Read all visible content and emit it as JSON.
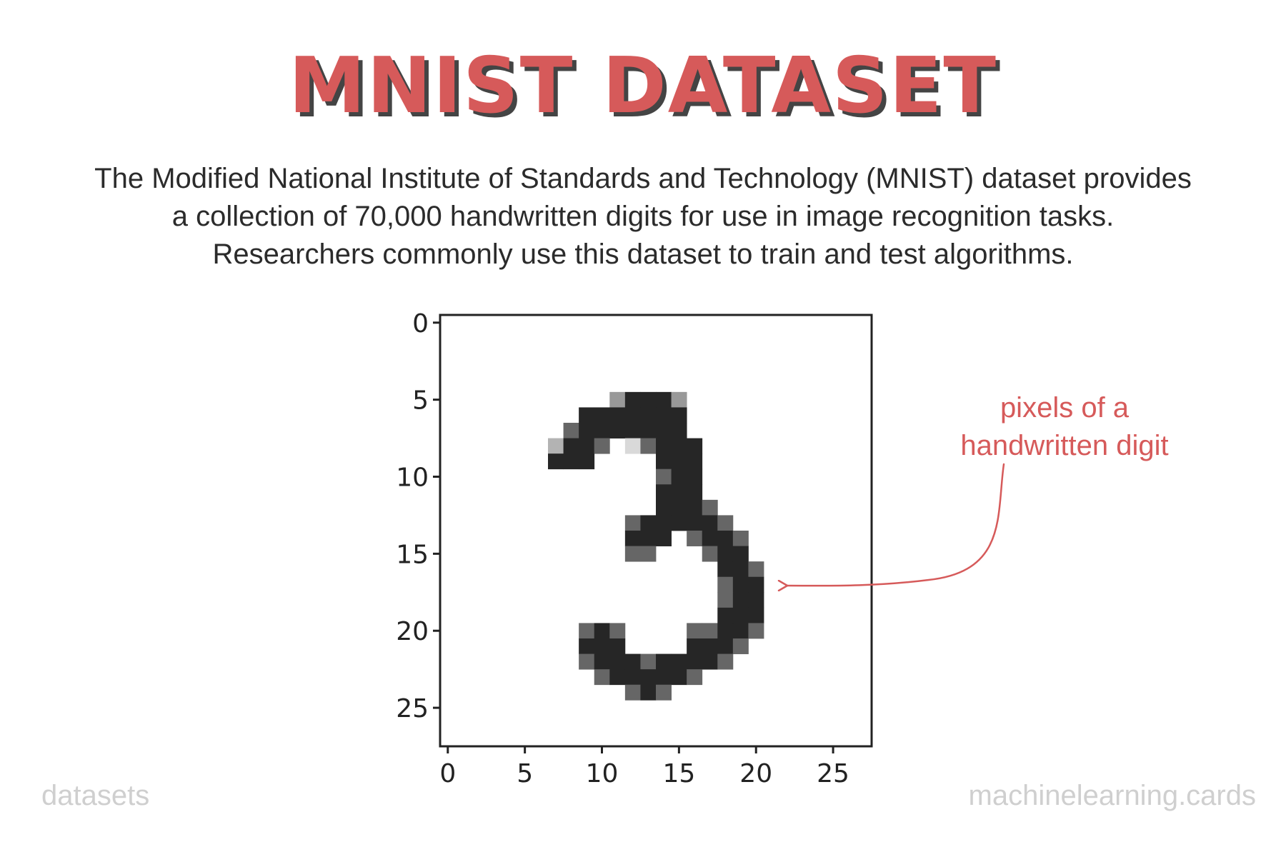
{
  "title": "MNIST DATASET",
  "description": [
    "The Modified National Institute of Standards and Technology (MNIST) dataset provides",
    "a collection of 70,000 handwritten digits for use in image recognition tasks.",
    "Researchers commonly use this dataset to train and test algorithms."
  ],
  "annotation": [
    "pixels of a",
    "handwritten digit"
  ],
  "footer": {
    "left": "datasets",
    "right": "machinelearning.cards"
  },
  "colors": {
    "accent": "#d65a5a",
    "shadow": "#444444",
    "ink": "#2b2b2b",
    "footer": "#cfcfcf"
  },
  "chart_data": {
    "type": "heatmap",
    "x_ticks": [
      0,
      5,
      10,
      15,
      20,
      25
    ],
    "y_ticks": [
      0,
      5,
      10,
      15,
      20,
      25
    ],
    "xlim": [
      -0.5,
      27.5
    ],
    "ylim": [
      27.5,
      -0.5
    ],
    "grid_size": [
      28,
      28
    ],
    "pixels": [
      [
        5,
        11,
        0.4
      ],
      [
        5,
        12,
        0.85
      ],
      [
        5,
        13,
        0.85
      ],
      [
        5,
        14,
        0.85
      ],
      [
        5,
        15,
        0.4
      ],
      [
        6,
        9,
        0.85
      ],
      [
        6,
        10,
        0.85
      ],
      [
        6,
        11,
        0.85
      ],
      [
        6,
        12,
        0.85
      ],
      [
        6,
        13,
        0.85
      ],
      [
        6,
        14,
        0.85
      ],
      [
        6,
        15,
        0.85
      ],
      [
        7,
        8,
        0.6
      ],
      [
        7,
        9,
        0.85
      ],
      [
        7,
        10,
        0.85
      ],
      [
        7,
        11,
        0.85
      ],
      [
        7,
        12,
        0.85
      ],
      [
        7,
        13,
        0.85
      ],
      [
        7,
        14,
        0.85
      ],
      [
        7,
        15,
        0.85
      ],
      [
        8,
        7,
        0.3
      ],
      [
        8,
        8,
        0.85
      ],
      [
        8,
        9,
        0.85
      ],
      [
        8,
        10,
        0.6
      ],
      [
        8,
        12,
        0.15
      ],
      [
        8,
        13,
        0.6
      ],
      [
        8,
        14,
        0.85
      ],
      [
        8,
        15,
        0.85
      ],
      [
        8,
        16,
        0.85
      ],
      [
        9,
        7,
        0.85
      ],
      [
        9,
        8,
        0.85
      ],
      [
        9,
        9,
        0.85
      ],
      [
        9,
        14,
        0.85
      ],
      [
        9,
        15,
        0.85
      ],
      [
        9,
        16,
        0.85
      ],
      [
        10,
        14,
        0.6
      ],
      [
        10,
        15,
        0.85
      ],
      [
        10,
        16,
        0.85
      ],
      [
        11,
        14,
        0.85
      ],
      [
        11,
        15,
        0.85
      ],
      [
        11,
        16,
        0.85
      ],
      [
        12,
        14,
        0.85
      ],
      [
        12,
        15,
        0.85
      ],
      [
        12,
        16,
        0.85
      ],
      [
        12,
        17,
        0.6
      ],
      [
        13,
        12,
        0.6
      ],
      [
        13,
        13,
        0.85
      ],
      [
        13,
        14,
        0.85
      ],
      [
        13,
        15,
        0.85
      ],
      [
        13,
        16,
        0.85
      ],
      [
        13,
        17,
        0.85
      ],
      [
        13,
        18,
        0.6
      ],
      [
        14,
        12,
        0.85
      ],
      [
        14,
        13,
        0.85
      ],
      [
        14,
        14,
        0.85
      ],
      [
        14,
        16,
        0.6
      ],
      [
        14,
        17,
        0.85
      ],
      [
        14,
        18,
        0.85
      ],
      [
        14,
        19,
        0.6
      ],
      [
        15,
        12,
        0.6
      ],
      [
        15,
        13,
        0.6
      ],
      [
        15,
        17,
        0.6
      ],
      [
        15,
        18,
        0.85
      ],
      [
        15,
        19,
        0.85
      ],
      [
        16,
        18,
        0.85
      ],
      [
        16,
        19,
        0.85
      ],
      [
        16,
        20,
        0.6
      ],
      [
        17,
        18,
        0.6
      ],
      [
        17,
        19,
        0.85
      ],
      [
        17,
        20,
        0.85
      ],
      [
        18,
        18,
        0.6
      ],
      [
        18,
        19,
        0.85
      ],
      [
        18,
        20,
        0.85
      ],
      [
        19,
        18,
        0.85
      ],
      [
        19,
        19,
        0.85
      ],
      [
        19,
        20,
        0.85
      ],
      [
        20,
        9,
        0.6
      ],
      [
        20,
        10,
        0.85
      ],
      [
        20,
        11,
        0.6
      ],
      [
        20,
        16,
        0.6
      ],
      [
        20,
        17,
        0.6
      ],
      [
        20,
        18,
        0.85
      ],
      [
        20,
        19,
        0.85
      ],
      [
        20,
        20,
        0.6
      ],
      [
        21,
        9,
        0.85
      ],
      [
        21,
        10,
        0.85
      ],
      [
        21,
        11,
        0.85
      ],
      [
        21,
        16,
        0.85
      ],
      [
        21,
        17,
        0.85
      ],
      [
        21,
        18,
        0.85
      ],
      [
        21,
        19,
        0.6
      ],
      [
        22,
        9,
        0.6
      ],
      [
        22,
        10,
        0.85
      ],
      [
        22,
        11,
        0.85
      ],
      [
        22,
        12,
        0.85
      ],
      [
        22,
        13,
        0.6
      ],
      [
        22,
        14,
        0.85
      ],
      [
        22,
        15,
        0.85
      ],
      [
        22,
        16,
        0.85
      ],
      [
        22,
        17,
        0.85
      ],
      [
        22,
        18,
        0.6
      ],
      [
        23,
        10,
        0.6
      ],
      [
        23,
        11,
        0.85
      ],
      [
        23,
        12,
        0.85
      ],
      [
        23,
        13,
        0.85
      ],
      [
        23,
        14,
        0.85
      ],
      [
        23,
        15,
        0.85
      ],
      [
        23,
        16,
        0.6
      ],
      [
        24,
        12,
        0.6
      ],
      [
        24,
        13,
        0.85
      ],
      [
        24,
        14,
        0.6
      ]
    ]
  }
}
